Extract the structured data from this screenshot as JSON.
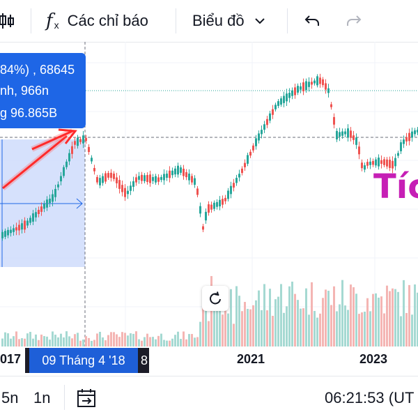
{
  "toolbar": {
    "indicators_label": "Các chỉ báo",
    "chart_type_label": "Biểu đồ"
  },
  "tooltip": {
    "line1": "84%) , 68645",
    "line2": "nh, 966n",
    "line3": "g 96.865B"
  },
  "time_axis": {
    "labels": [
      "017",
      "2021",
      "2023"
    ],
    "selected_date": "09 Tháng 4 '18",
    "selected_date_suffix": "8"
  },
  "bottom_bar": {
    "intervals": [
      "5n",
      "1n"
    ],
    "clock": "06:21:53 (UT"
  },
  "overlay": {
    "text": "Tíc"
  },
  "colors": {
    "up": "#26a69a",
    "down": "#ef5350",
    "accent": "#1e66e6",
    "annotation": "#c61fb5",
    "arrow": "#ff2a2a"
  }
}
